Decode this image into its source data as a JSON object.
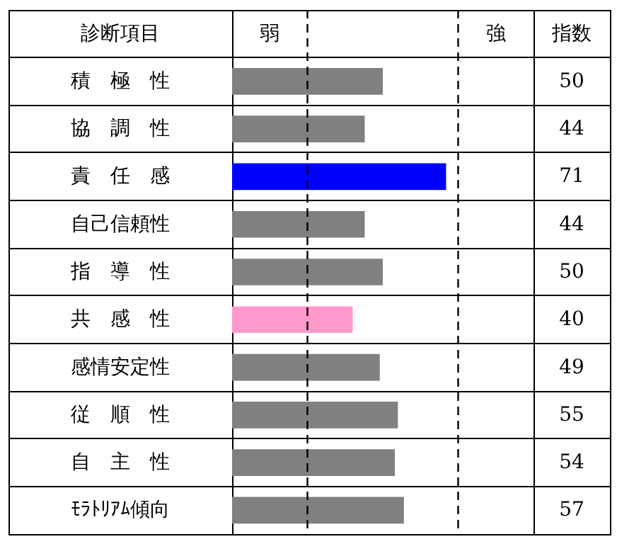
{
  "chart_data": {
    "type": "bar",
    "orientation": "horizontal",
    "ylabel": "診断項目",
    "annotations": [
      "弱",
      "強",
      "指数"
    ],
    "categories": [
      "積　極　性",
      "協　調　性",
      "責　任　感",
      "自己信頼性",
      "指　導　性",
      "共　感　性",
      "感情安定性",
      "従　順　性",
      "自　主　性",
      "ﾓﾗﾄﾘｱﾑ傾向"
    ],
    "values": [
      50,
      44,
      71,
      44,
      50,
      40,
      49,
      55,
      54,
      57
    ],
    "colors": [
      "#808080",
      "#808080",
      "#0000ff",
      "#808080",
      "#808080",
      "#ff99cc",
      "#808080",
      "#808080",
      "#808080",
      "#808080"
    ],
    "xlim": [
      0,
      100
    ],
    "data_labels": true,
    "grid": "y",
    "ref_lines": [
      {
        "axis": "x",
        "value": 25,
        "line_style": "dashed",
        "color": "#000000"
      },
      {
        "axis": "x",
        "value": 75,
        "line_style": "dashed",
        "color": "#000000"
      }
    ]
  }
}
